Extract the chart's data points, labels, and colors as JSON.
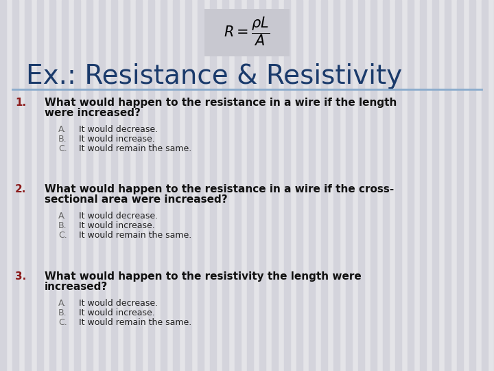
{
  "bg_color": "#e4e4e8",
  "stripe_color": "#d4d4dc",
  "title": "Ex.: Resistance & Resistivity",
  "title_color": "#1a3a6b",
  "title_fontsize": 28,
  "divider_color": "#8aabcc",
  "formula_box_color": "#c8c8d0",
  "number_color": "#8b1a1a",
  "question_color": "#111111",
  "answer_color": "#222222",
  "label_color": "#666666",
  "questions": [
    {
      "num": "1.",
      "text_line1": "What would happen to the resistance in a wire if the length",
      "text_line2": "were increased?",
      "answers": [
        {
          "label": "A.",
          "text": "It would decrease."
        },
        {
          "label": "B.",
          "text": "It would increase."
        },
        {
          "label": "C.",
          "text": "It would remain the same."
        }
      ]
    },
    {
      "num": "2.",
      "text_line1": "What would happen to the resistance in a wire if the cross-",
      "text_line2": "sectional area were increased?",
      "answers": [
        {
          "label": "A.",
          "text": "It would decrease."
        },
        {
          "label": "B.",
          "text": "It would increase."
        },
        {
          "label": "C.",
          "text": "It would remain the same."
        }
      ]
    },
    {
      "num": "3.",
      "text_line1": "What would happen to the resistivity the length were",
      "text_line2": "increased?",
      "answers": [
        {
          "label": "A.",
          "text": "It would decrease."
        },
        {
          "label": "B.",
          "text": "It would increase."
        },
        {
          "label": "C.",
          "text": "It would remain the same."
        }
      ]
    }
  ]
}
